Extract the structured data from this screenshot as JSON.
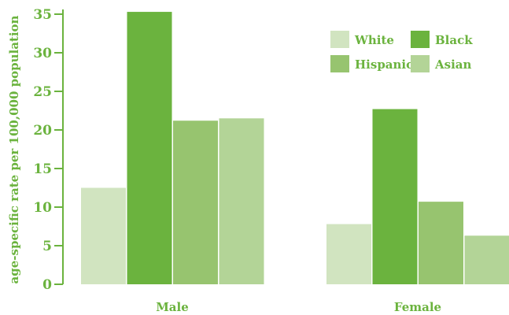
{
  "chart_data": {
    "type": "bar",
    "title": "",
    "xlabel": "",
    "ylabel": "age-specific rate per 100,000 population",
    "categories": [
      "Male",
      "Female"
    ],
    "series": [
      {
        "name": "White",
        "color": "#d1e4c0",
        "values": [
          12.5,
          7.8
        ]
      },
      {
        "name": "Black",
        "color": "#6bb33e",
        "values": [
          35.3,
          22.7
        ]
      },
      {
        "name": "Hispanic",
        "color": "#97c46f",
        "values": [
          21.2,
          10.7
        ]
      },
      {
        "name": "Asian",
        "color": "#b3d497",
        "values": [
          21.5,
          6.3
        ]
      }
    ],
    "ylim": [
      0,
      35
    ],
    "yticks": [
      0,
      5,
      10,
      15,
      20,
      25,
      30,
      35
    ],
    "legend": "top-right",
    "grid": false,
    "text_color": "#6bb33e",
    "axis_color": "#6bb33e"
  }
}
